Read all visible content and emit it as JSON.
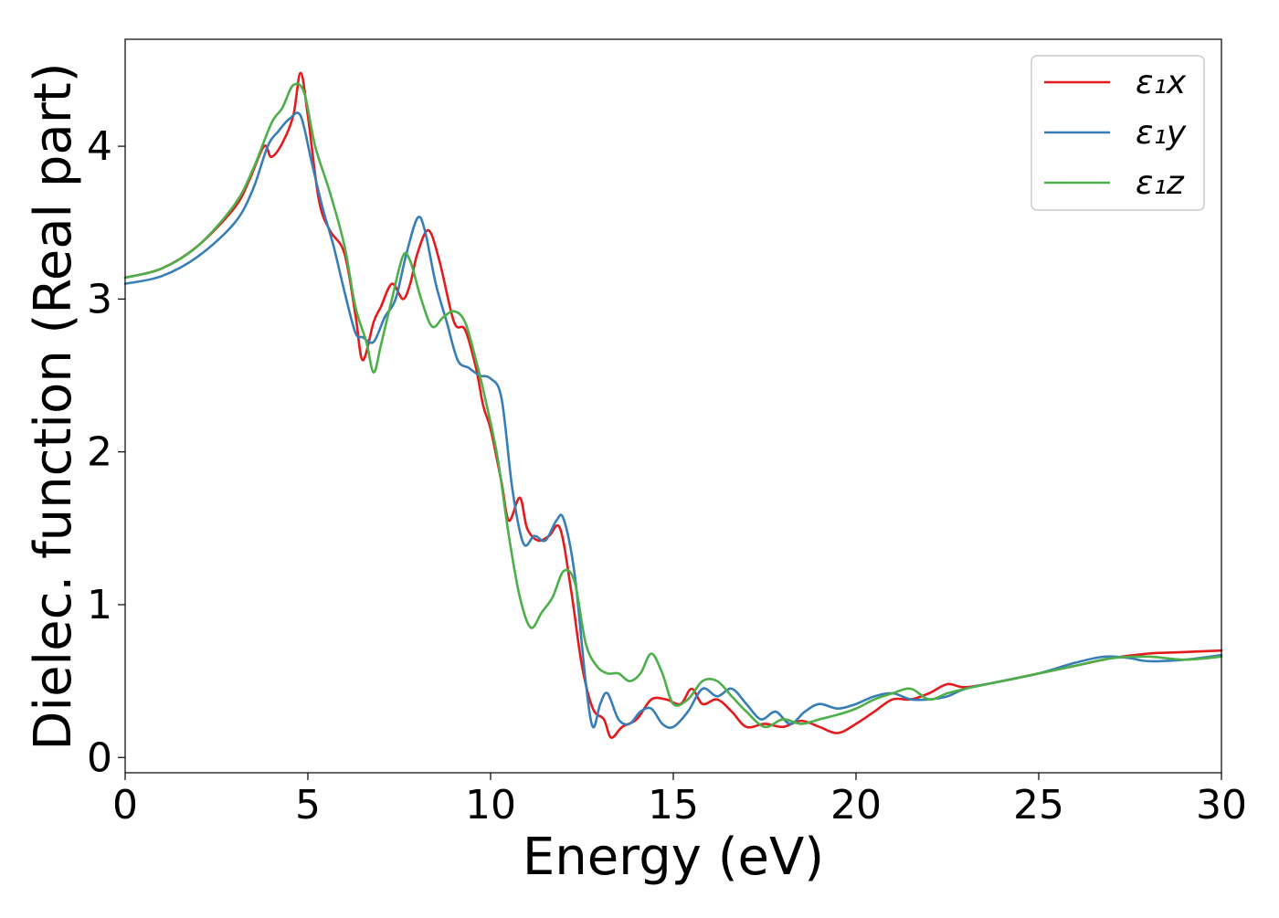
{
  "chart_data": {
    "type": "line",
    "xlabel": "Energy (eV)",
    "ylabel": "Dielec. function (Real part)",
    "xlim": [
      0,
      30
    ],
    "ylim": [
      -0.1,
      4.7
    ],
    "xticks": [
      0,
      5,
      10,
      15,
      20,
      25,
      30
    ],
    "yticks": [
      0,
      1,
      2,
      3,
      4
    ],
    "grid": false,
    "legend_position": "top-right",
    "series": [
      {
        "name": "ε₁x",
        "color": "#e41a1c",
        "x": [
          0,
          1,
          2,
          3,
          3.4,
          3.8,
          4.0,
          4.3,
          4.6,
          4.8,
          5.0,
          5.3,
          5.6,
          6.0,
          6.3,
          6.5,
          6.8,
          7.0,
          7.3,
          7.6,
          7.8,
          8.0,
          8.3,
          8.6,
          9.0,
          9.3,
          9.6,
          9.8,
          10.0,
          10.3,
          10.5,
          10.8,
          11.0,
          11.3,
          11.6,
          11.9,
          12.2,
          12.5,
          12.8,
          13.1,
          13.3,
          13.6,
          14.0,
          14.4,
          14.8,
          15.2,
          15.5,
          15.8,
          16.2,
          16.6,
          17.0,
          17.5,
          18.0,
          18.5,
          19.0,
          19.5,
          20.0,
          20.5,
          21.0,
          21.5,
          22.0,
          22.5,
          23.0,
          24.0,
          25.0,
          26.0,
          27.0,
          28.0,
          29.0,
          30.0
        ],
        "values": [
          3.14,
          3.2,
          3.35,
          3.6,
          3.78,
          4.0,
          3.93,
          4.02,
          4.2,
          4.48,
          4.2,
          3.65,
          3.45,
          3.3,
          2.9,
          2.6,
          2.85,
          2.95,
          3.1,
          3.0,
          3.1,
          3.3,
          3.45,
          3.25,
          2.85,
          2.8,
          2.55,
          2.3,
          2.15,
          1.8,
          1.55,
          1.7,
          1.5,
          1.42,
          1.45,
          1.5,
          1.1,
          0.6,
          0.32,
          0.25,
          0.13,
          0.2,
          0.25,
          0.38,
          0.38,
          0.35,
          0.45,
          0.35,
          0.38,
          0.3,
          0.2,
          0.22,
          0.2,
          0.24,
          0.2,
          0.16,
          0.22,
          0.3,
          0.38,
          0.38,
          0.42,
          0.48,
          0.46,
          0.5,
          0.55,
          0.6,
          0.65,
          0.68,
          0.69,
          0.7
        ]
      },
      {
        "name": "ε₁y",
        "color": "#377eb8",
        "x": [
          0,
          1,
          2,
          3,
          3.5,
          3.9,
          4.2,
          4.5,
          4.8,
          5.1,
          5.4,
          5.7,
          6.0,
          6.3,
          6.5,
          6.8,
          7.1,
          7.4,
          7.7,
          8.0,
          8.2,
          8.5,
          8.8,
          9.1,
          9.4,
          9.7,
          10.0,
          10.3,
          10.6,
          10.9,
          11.2,
          11.5,
          11.8,
          12.0,
          12.3,
          12.6,
          12.8,
          13.0,
          13.2,
          13.5,
          13.8,
          14.1,
          14.4,
          14.7,
          15.0,
          15.4,
          15.8,
          16.2,
          16.6,
          17.0,
          17.4,
          17.8,
          18.2,
          18.6,
          19.0,
          19.5,
          20.0,
          20.5,
          21.0,
          21.5,
          22.0,
          22.5,
          23.0,
          24.0,
          25.0,
          26.0,
          26.8,
          27.5,
          28.0,
          29.0,
          30.0
        ],
        "values": [
          3.1,
          3.15,
          3.28,
          3.5,
          3.72,
          4.0,
          4.1,
          4.18,
          4.2,
          3.9,
          3.6,
          3.35,
          3.05,
          2.78,
          2.75,
          2.72,
          2.88,
          3.0,
          3.3,
          3.53,
          3.45,
          3.1,
          2.85,
          2.6,
          2.55,
          2.5,
          2.48,
          2.35,
          1.75,
          1.4,
          1.45,
          1.42,
          1.55,
          1.56,
          1.2,
          0.5,
          0.2,
          0.35,
          0.42,
          0.25,
          0.22,
          0.3,
          0.32,
          0.22,
          0.2,
          0.3,
          0.45,
          0.4,
          0.45,
          0.35,
          0.25,
          0.3,
          0.22,
          0.3,
          0.35,
          0.32,
          0.35,
          0.4,
          0.42,
          0.38,
          0.38,
          0.4,
          0.45,
          0.5,
          0.55,
          0.62,
          0.66,
          0.65,
          0.63,
          0.64,
          0.67
        ]
      },
      {
        "name": "ε₁z",
        "color": "#4daf4a",
        "x": [
          0,
          1,
          2,
          3,
          3.5,
          4.0,
          4.3,
          4.6,
          4.9,
          5.2,
          5.6,
          6.0,
          6.3,
          6.6,
          6.8,
          7.0,
          7.3,
          7.6,
          7.8,
          8.1,
          8.4,
          8.7,
          9.0,
          9.3,
          9.6,
          9.9,
          10.2,
          10.5,
          10.8,
          11.1,
          11.4,
          11.7,
          12.0,
          12.3,
          12.6,
          12.9,
          13.2,
          13.5,
          13.8,
          14.1,
          14.4,
          14.7,
          15.0,
          15.4,
          15.8,
          16.2,
          16.6,
          17.0,
          17.5,
          18.0,
          18.5,
          19.0,
          19.5,
          20.0,
          20.5,
          21.0,
          21.5,
          22.0,
          22.5,
          23.0,
          24.0,
          25.0,
          26.0,
          27.0,
          28.0,
          29.0,
          30.0
        ],
        "values": [
          3.14,
          3.2,
          3.35,
          3.62,
          3.85,
          4.15,
          4.25,
          4.4,
          4.35,
          4.0,
          3.7,
          3.35,
          2.95,
          2.72,
          2.52,
          2.7,
          3.0,
          3.28,
          3.25,
          3.0,
          2.82,
          2.88,
          2.92,
          2.85,
          2.6,
          2.3,
          1.95,
          1.45,
          1.05,
          0.85,
          0.95,
          1.05,
          1.22,
          1.15,
          0.75,
          0.6,
          0.55,
          0.55,
          0.5,
          0.55,
          0.68,
          0.55,
          0.35,
          0.38,
          0.5,
          0.5,
          0.4,
          0.3,
          0.2,
          0.25,
          0.22,
          0.25,
          0.28,
          0.32,
          0.38,
          0.42,
          0.45,
          0.38,
          0.42,
          0.45,
          0.5,
          0.55,
          0.6,
          0.65,
          0.66,
          0.64,
          0.66
        ]
      }
    ]
  }
}
